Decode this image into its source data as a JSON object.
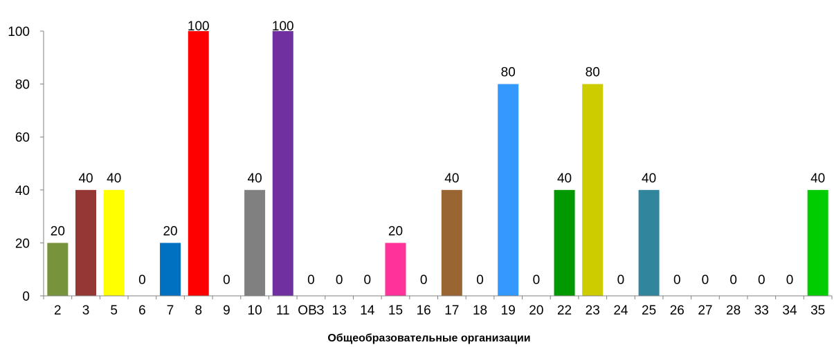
{
  "chart_data": {
    "type": "bar",
    "title": "",
    "xlabel": "Общеобразовательные организации",
    "ylabel": "",
    "ylim": [
      0,
      100
    ],
    "yticks": [
      0,
      20,
      40,
      60,
      80,
      100
    ],
    "grid": false,
    "legend": "none",
    "categories": [
      "2",
      "3",
      "5",
      "6",
      "7",
      "8",
      "9",
      "10",
      "11",
      "ОВЗ",
      "13",
      "14",
      "15",
      "16",
      "17",
      "18",
      "19",
      "20",
      "22",
      "23",
      "24",
      "25",
      "26",
      "27",
      "28",
      "33",
      "34",
      "35"
    ],
    "values": [
      20,
      40,
      40,
      0,
      20,
      100,
      0,
      40,
      100,
      0,
      0,
      0,
      20,
      0,
      40,
      0,
      80,
      0,
      40,
      80,
      0,
      40,
      0,
      0,
      0,
      0,
      0,
      40
    ],
    "data_labels": [
      "20",
      "40",
      "40",
      "0",
      "20",
      "100",
      "0",
      "40",
      "100",
      "0",
      "0",
      "0",
      "20",
      "0",
      "40",
      "0",
      "80",
      "0",
      "40",
      "80",
      "0",
      "40",
      "0",
      "0",
      "0",
      "0",
      "0",
      "40"
    ],
    "colors": [
      "#77933c",
      "#953735",
      "#ffff00",
      "#ffffff",
      "#0070c0",
      "#ff0000",
      "#ffffff",
      "#808080",
      "#7030a0",
      "#ffffff",
      "#ffffff",
      "#ffffff",
      "#ff3399",
      "#ffffff",
      "#996633",
      "#ffffff",
      "#3399ff",
      "#ffffff",
      "#009900",
      "#cccc00",
      "#ffffff",
      "#31859c",
      "#ffffff",
      "#ffffff",
      "#ffffff",
      "#ffffff",
      "#ffffff",
      "#00cc00"
    ]
  }
}
